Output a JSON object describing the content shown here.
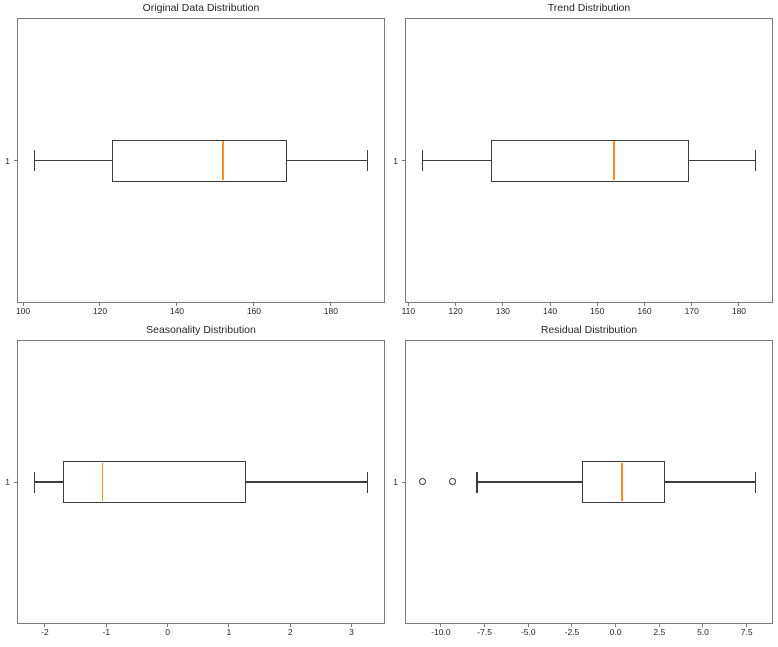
{
  "figure": {
    "background_color": "#ffffff",
    "spine_color": "#7a7a7a",
    "box_line_color": "#3d3d3d",
    "median_line_color": "#ff8c1f",
    "text_color": "#262626"
  },
  "chart_data": [
    {
      "type": "boxplot",
      "orientation": "horizontal",
      "title": "Original Data Distribution",
      "position_label": "1",
      "whisker_low": 103,
      "q1": 123,
      "median": 152,
      "q3": 168.5,
      "whisker_high": 189.5,
      "outliers": [],
      "xlim": [
        98.7,
        193.8
      ],
      "x_ticks": [
        100,
        120,
        140,
        160,
        180
      ],
      "x_tick_labels": [
        "100",
        "120",
        "140",
        "160",
        "180"
      ],
      "grid": false
    },
    {
      "type": "boxplot",
      "orientation": "horizontal",
      "title": "Trend Distribution",
      "position_label": "1",
      "whisker_low": 113,
      "q1": 127.5,
      "median": 153.5,
      "q3": 169.5,
      "whisker_high": 183.5,
      "outliers": [],
      "xlim": [
        109.5,
        187.0
      ],
      "x_ticks": [
        110,
        120,
        130,
        140,
        150,
        160,
        170,
        180
      ],
      "x_tick_labels": [
        "110",
        "120",
        "130",
        "140",
        "150",
        "160",
        "170",
        "180"
      ],
      "grid": false
    },
    {
      "type": "boxplot",
      "orientation": "horizontal",
      "title": "Seasonality Distribution",
      "position_label": "1",
      "whisker_low": -2.17,
      "q1": -1.71,
      "median": -1.06,
      "q3": 1.28,
      "whisker_high": 3.26,
      "outliers": [],
      "xlim": [
        -2.44,
        3.53
      ],
      "x_ticks": [
        -2,
        -1,
        0,
        1,
        2,
        3
      ],
      "x_tick_labels": [
        "-2",
        "-1",
        "0",
        "1",
        "2",
        "3"
      ],
      "grid": false
    },
    {
      "type": "boxplot",
      "orientation": "horizontal",
      "title": "Residual Distribution",
      "position_label": "1",
      "whisker_low": -7.95,
      "q1": -1.95,
      "median": 0.35,
      "q3": 2.8,
      "whisker_high": 8.0,
      "outliers": [
        -11.05,
        -9.35
      ],
      "xlim": [
        -12.0,
        8.95
      ],
      "x_ticks": [
        -10.0,
        -7.5,
        -5.0,
        -2.5,
        0.0,
        2.5,
        5.0,
        7.5
      ],
      "x_tick_labels": [
        "-10.0",
        "-7.5",
        "-5.0",
        "-2.5",
        "0.0",
        "2.5",
        "5.0",
        "7.5"
      ],
      "grid": false
    }
  ]
}
